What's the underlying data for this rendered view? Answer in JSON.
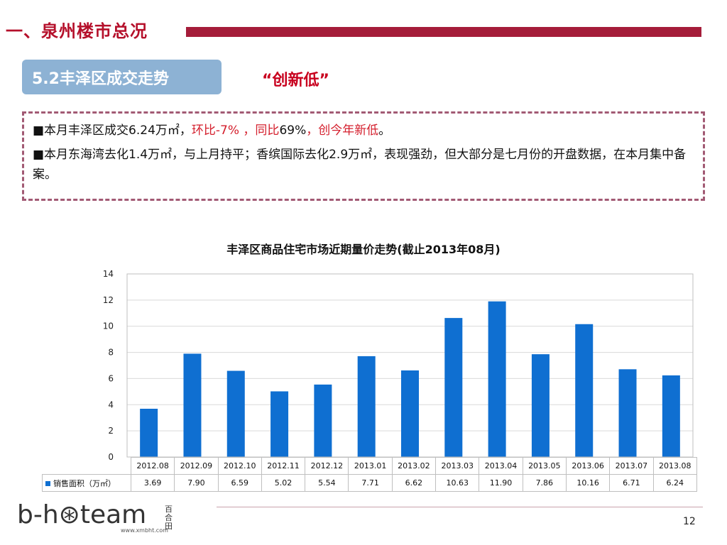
{
  "header": {
    "title": "一、泉州楼市总况"
  },
  "section": {
    "badge": "5.2丰泽区成交走势",
    "tagline": "“创新低”"
  },
  "notes": {
    "p1": {
      "a": "■本月丰泽区成交6.24万㎡，",
      "b": "环比-7% ，同比",
      "c": "69%",
      "d": "，创今年新低",
      "e": "。"
    },
    "p2": "■本月东海湾去化1.4万㎡，与上月持平；香缤国际去化2.9万㎡，表现强劲，但大部分是七月份的开盘数据，在本月集中备案。"
  },
  "chart_data": {
    "type": "bar",
    "title": "丰泽区商品住宅市场近期量价走势(截止2013年08月)",
    "categories": [
      "2012.08",
      "2012.09",
      "2012.10",
      "2012.11",
      "2012.12",
      "2013.01",
      "2013.02",
      "2013.03",
      "2013.04",
      "2013.05",
      "2013.06",
      "2013.07",
      "2013.08"
    ],
    "series": [
      {
        "name": "销售面积（万㎡）",
        "values": [
          3.69,
          7.9,
          6.59,
          5.02,
          5.54,
          7.71,
          6.62,
          10.63,
          11.9,
          7.86,
          10.16,
          6.71,
          6.24
        ]
      }
    ],
    "value_labels": [
      "3.69",
      "7.90",
      "6.59",
      "5.02",
      "5.54",
      "7.71",
      "6.62",
      "10.63",
      "11.90",
      "7.86",
      "10.16",
      "6.71",
      "6.24"
    ],
    "ylim": [
      0,
      14
    ],
    "yticks": [
      "0",
      "2",
      "4",
      "6",
      "8",
      "10",
      "12",
      "14"
    ],
    "grid": true,
    "color": "#0f6fd1"
  },
  "footer": {
    "logo": "b-h⊛team",
    "logo_cn": "百合田",
    "url": "www.xmbht.com",
    "page": "12"
  }
}
